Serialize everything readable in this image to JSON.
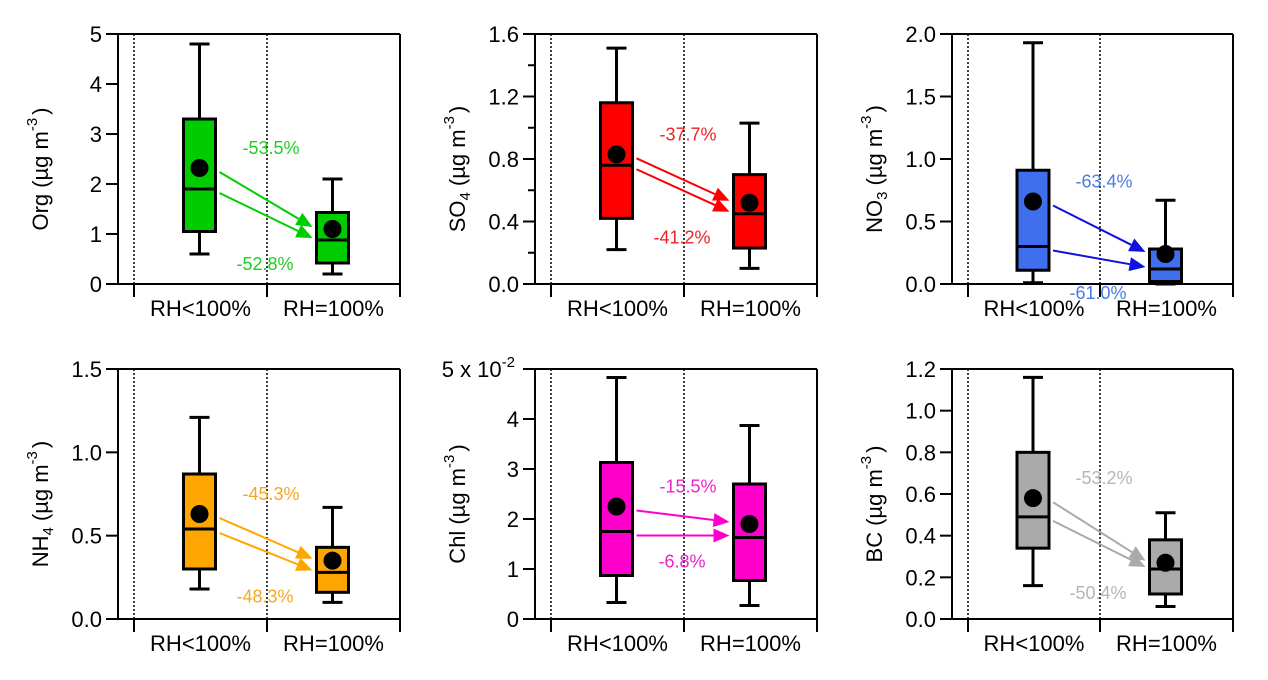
{
  "figure": {
    "layout": "2x3 grid of box plots",
    "categories": [
      "RH<100%",
      "RH=100%"
    ]
  },
  "chart_data": [
    {
      "type": "box",
      "id": "org",
      "ylabel": {
        "species": "Org",
        "sub": "",
        "unit": "(µg m",
        "exp": "-3",
        "close": ")"
      },
      "ylim": [
        0,
        5
      ],
      "yticks": [
        0,
        1,
        2,
        3,
        4,
        5
      ],
      "ytick_labels": [
        "0",
        "1",
        "2",
        "3",
        "4",
        "5"
      ],
      "yminor": [],
      "scale_label": "",
      "color": "#00cc00",
      "label_color": "#22cc22",
      "categories": [
        "RH<100%",
        "RH=100%"
      ],
      "boxes": [
        {
          "whisker_low": 0.6,
          "q1": 1.05,
          "median": 1.9,
          "q3": 3.3,
          "whisker_high": 4.8,
          "mean": 2.32
        },
        {
          "whisker_low": 0.2,
          "q1": 0.42,
          "median": 0.88,
          "q3": 1.43,
          "whisker_high": 2.1,
          "mean": 1.1
        }
      ],
      "changes": {
        "mean": "-53.5%",
        "median": "-52.8%"
      }
    },
    {
      "type": "box",
      "id": "so4",
      "ylabel": {
        "species": "SO",
        "sub": "4",
        "unit": "(µg m",
        "exp": "-3",
        "close": ")"
      },
      "ylim": [
        0,
        1.6
      ],
      "yticks": [
        0,
        0.4,
        0.8,
        1.2,
        1.6
      ],
      "ytick_labels": [
        "0.0",
        "0.4",
        "0.8",
        "1.2",
        "1.6"
      ],
      "yminor": [
        0.2,
        0.6,
        1.0,
        1.4
      ],
      "scale_label": "",
      "color": "#ff0000",
      "label_color": "#ee2222",
      "categories": [
        "RH<100%",
        "RH=100%"
      ],
      "boxes": [
        {
          "whisker_low": 0.22,
          "q1": 0.42,
          "median": 0.76,
          "q3": 1.16,
          "whisker_high": 1.51,
          "mean": 0.83
        },
        {
          "whisker_low": 0.1,
          "q1": 0.23,
          "median": 0.45,
          "q3": 0.7,
          "whisker_high": 1.03,
          "mean": 0.52
        }
      ],
      "changes": {
        "mean": "-37.7%",
        "median": "-41.2%"
      }
    },
    {
      "type": "box",
      "id": "no3",
      "ylabel": {
        "species": "NO",
        "sub": "3",
        "unit": "(µg m",
        "exp": "-3",
        "close": ")"
      },
      "ylim": [
        0,
        2.0
      ],
      "yticks": [
        0,
        0.5,
        1.0,
        1.5,
        2.0
      ],
      "ytick_labels": [
        "0.0",
        "0.5",
        "1.0",
        "1.5",
        "2.0"
      ],
      "yminor": [],
      "scale_label": "",
      "color": "#3f6fef",
      "arrow_color": "#1010e0",
      "label_color": "#4a7ae6",
      "categories": [
        "RH<100%",
        "RH=100%"
      ],
      "boxes": [
        {
          "whisker_low": 0.01,
          "q1": 0.11,
          "median": 0.3,
          "q3": 0.91,
          "whisker_high": 1.93,
          "mean": 0.66
        },
        {
          "whisker_low": 0.0,
          "q1": 0.02,
          "median": 0.12,
          "q3": 0.28,
          "whisker_high": 0.67,
          "mean": 0.24
        }
      ],
      "changes": {
        "mean": "-63.4%",
        "median": "-61.0%"
      }
    },
    {
      "type": "box",
      "id": "nh4",
      "ylabel": {
        "species": "NH",
        "sub": "4",
        "unit": "(µg m",
        "exp": "-3",
        "close": ")"
      },
      "ylim": [
        0,
        1.5
      ],
      "yticks": [
        0,
        0.5,
        1.0,
        1.5
      ],
      "ytick_labels": [
        "0.0",
        "0.5",
        "1.0",
        "1.5"
      ],
      "yminor": [],
      "scale_label": "",
      "color": "#ffa500",
      "label_color": "#f5a623",
      "categories": [
        "RH<100%",
        "RH=100%"
      ],
      "boxes": [
        {
          "whisker_low": 0.18,
          "q1": 0.3,
          "median": 0.54,
          "q3": 0.87,
          "whisker_high": 1.21,
          "mean": 0.63
        },
        {
          "whisker_low": 0.1,
          "q1": 0.16,
          "median": 0.28,
          "q3": 0.43,
          "whisker_high": 0.67,
          "mean": 0.35
        }
      ],
      "changes": {
        "mean": "-45.3%",
        "median": "-48.3%"
      }
    },
    {
      "type": "box",
      "id": "chl",
      "ylabel": {
        "species": "Chl",
        "sub": "",
        "unit": "(µg m",
        "exp": "-3",
        "close": ")"
      },
      "ylim": [
        0,
        5
      ],
      "yticks": [
        0,
        1,
        2,
        3,
        4
      ],
      "ytick_labels": [
        "0",
        "1",
        "2",
        "3",
        "4"
      ],
      "yminor": [],
      "scale_label": {
        "base": "5 x 10",
        "exp": "-2"
      },
      "value_multiplier": 0.01,
      "color": "#ff00cc",
      "label_color": "#ee22cc",
      "categories": [
        "RH<100%",
        "RH=100%"
      ],
      "boxes": [
        {
          "whisker_low": 0.33,
          "q1": 0.87,
          "median": 1.75,
          "q3": 3.13,
          "whisker_high": 4.83,
          "mean": 2.25
        },
        {
          "whisker_low": 0.27,
          "q1": 0.77,
          "median": 1.63,
          "q3": 2.7,
          "whisker_high": 3.87,
          "mean": 1.9
        }
      ],
      "changes": {
        "mean": "-15.5%",
        "median": "-6.8%"
      }
    },
    {
      "type": "box",
      "id": "bc",
      "ylabel": {
        "species": "BC",
        "sub": "",
        "unit": "(µg m",
        "exp": "-3",
        "close": ")"
      },
      "ylim": [
        0,
        1.2
      ],
      "yticks": [
        0,
        0.2,
        0.4,
        0.6,
        0.8,
        1.0,
        1.2
      ],
      "ytick_labels": [
        "0.0",
        "0.2",
        "0.4",
        "0.6",
        "0.8",
        "1.0",
        "1.2"
      ],
      "yminor": [],
      "scale_label": "",
      "color": "#aaaaaa",
      "label_color": "#b5b5b5",
      "categories": [
        "RH<100%",
        "RH=100%"
      ],
      "boxes": [
        {
          "whisker_low": 0.16,
          "q1": 0.34,
          "median": 0.49,
          "q3": 0.8,
          "whisker_high": 1.16,
          "mean": 0.58
        },
        {
          "whisker_low": 0.06,
          "q1": 0.12,
          "median": 0.24,
          "q3": 0.38,
          "whisker_high": 0.51,
          "mean": 0.27
        }
      ],
      "changes": {
        "mean": "-53.2%",
        "median": "-50.4%"
      }
    }
  ]
}
